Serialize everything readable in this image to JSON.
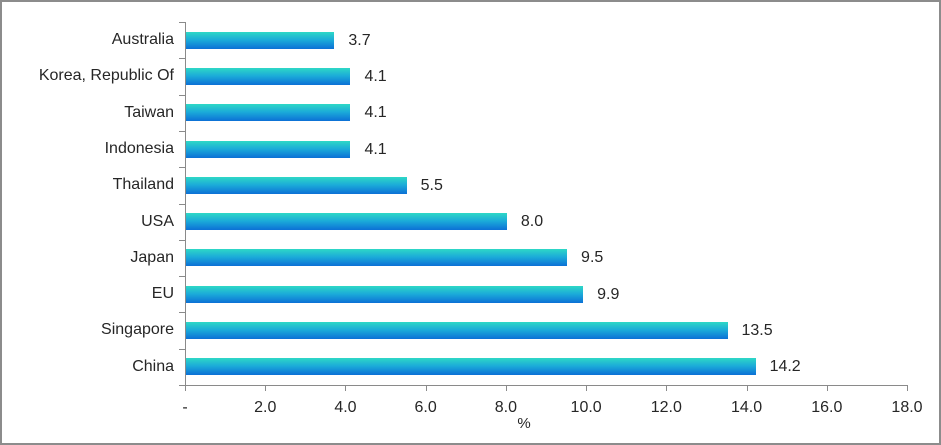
{
  "chart_data": {
    "type": "bar",
    "orientation": "horizontal",
    "title": "",
    "categories": [
      "Australia",
      "Korea, Republic Of",
      "Taiwan",
      "Indonesia",
      "Thailand",
      "USA",
      "Japan",
      "EU",
      "Singapore",
      "China"
    ],
    "values": [
      3.7,
      4.1,
      4.1,
      4.1,
      5.5,
      8.0,
      9.5,
      9.9,
      13.5,
      14.2
    ],
    "value_labels": [
      "3.7",
      "4.1",
      "4.1",
      "4.1",
      "5.5",
      "8.0",
      "9.5",
      "9.9",
      "13.5",
      "14.2"
    ],
    "xlabel": "%",
    "ylabel": "",
    "xlim": [
      0,
      18
    ],
    "x_tick_values": [
      0,
      2,
      4,
      6,
      8,
      10,
      12,
      14,
      16,
      18
    ],
    "x_tick_labels": [
      "-",
      "2.0",
      "4.0",
      "6.0",
      "8.0",
      "10.0",
      "12.0",
      "14.0",
      "16.0",
      "18.0"
    ],
    "grid": "off",
    "legend": "none",
    "colors": {
      "bar_gradient_top": "#2ed8c6",
      "bar_gradient_mid": "#1baad9",
      "bar_gradient_bottom": "#0c70d6",
      "axis_line": "#8a8a8a",
      "text": "#262626",
      "frame_border": "#8c8c8c",
      "background": "#ffffff"
    }
  }
}
